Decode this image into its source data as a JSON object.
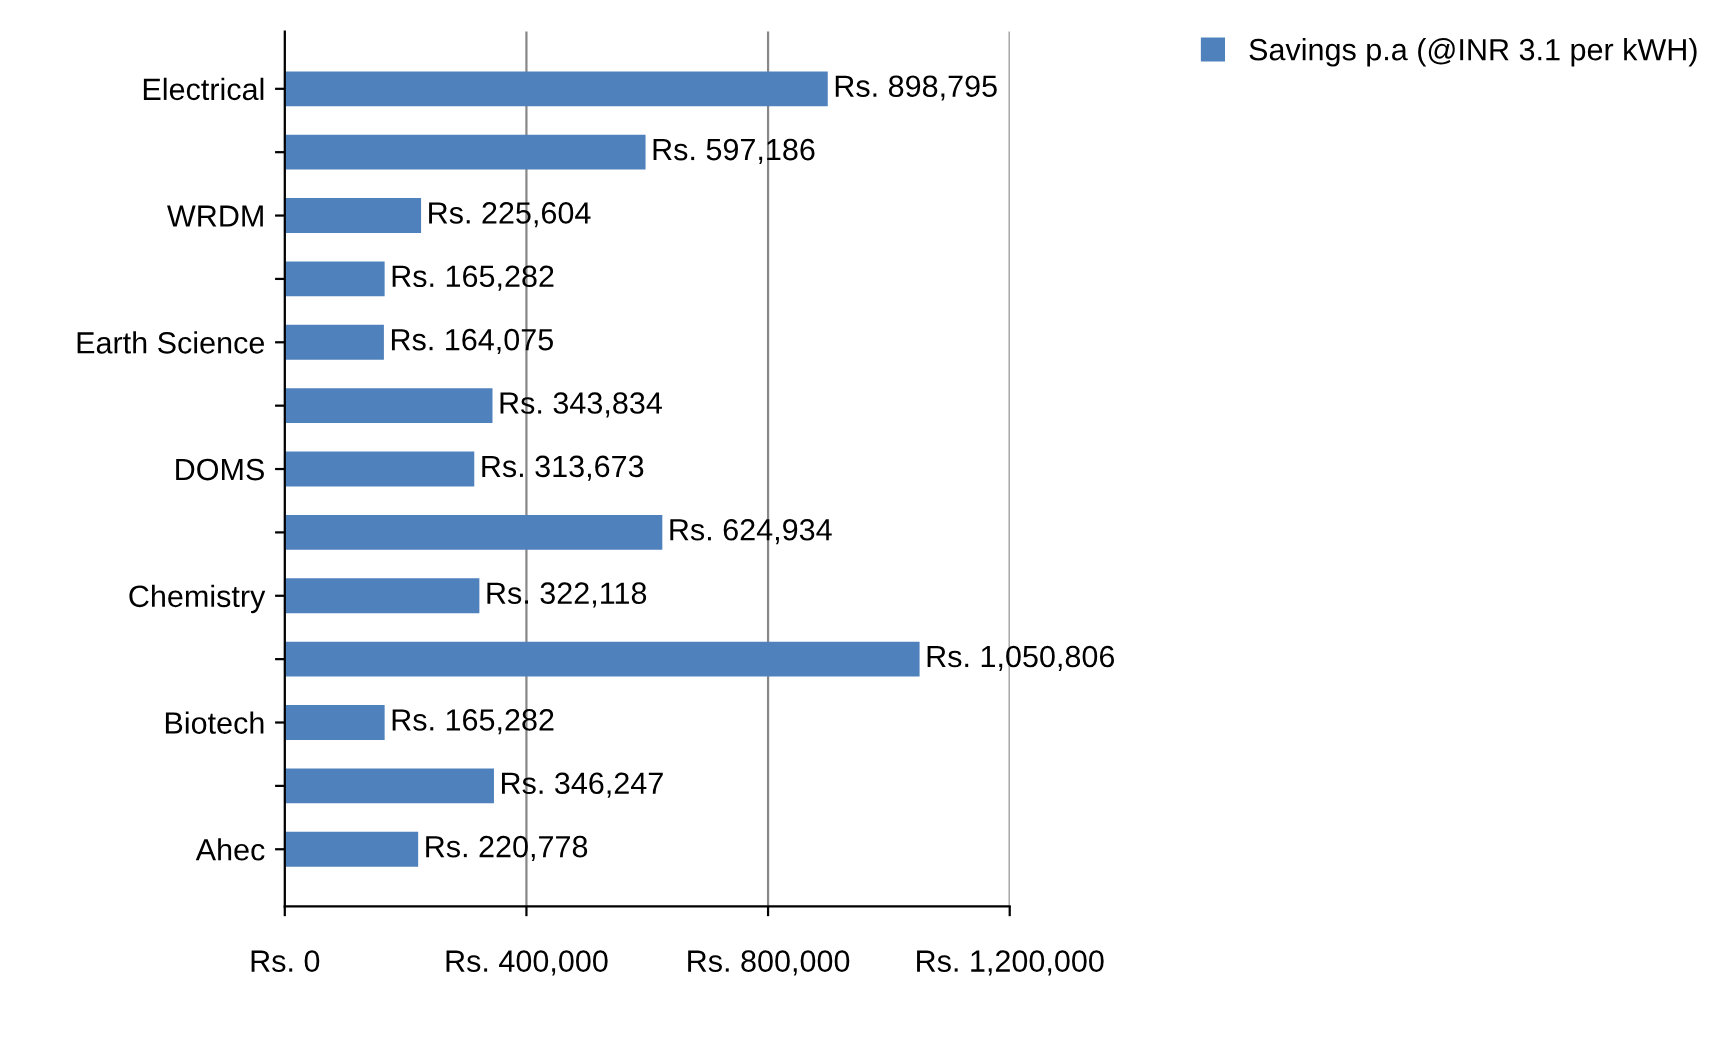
{
  "chart_data": {
    "type": "bar",
    "orientation": "horizontal",
    "categories": [
      "Electrical",
      null,
      "WRDM",
      null,
      "Earth Science",
      null,
      "DOMS",
      null,
      "Chemistry",
      null,
      "Biotech",
      null,
      "Ahec"
    ],
    "series": [
      {
        "name": "Savings p.a (@INR 3.1 per kWH)",
        "color": "#4f81bd",
        "values": [
          898795,
          597186,
          225604,
          165282,
          164075,
          343834,
          313673,
          624934,
          322118,
          1050806,
          165282,
          346247,
          220778
        ],
        "value_labels": [
          "Rs. 898,795",
          "Rs. 597,186",
          "Rs. 225,604",
          "Rs. 165,282",
          "Rs. 164,075",
          "Rs. 343,834",
          "Rs. 313,673",
          "Rs. 624,934",
          "Rs. 322,118",
          "Rs. 1,050,806",
          "Rs. 165,282",
          "Rs. 346,247",
          "Rs. 220,778"
        ]
      }
    ],
    "xlim": [
      0,
      1200000
    ],
    "xticks": [
      {
        "value": 0,
        "label": "Rs. 0"
      },
      {
        "value": 400000,
        "label": "Rs. 400,000"
      },
      {
        "value": 800000,
        "label": "Rs. 800,000"
      },
      {
        "value": 1200000,
        "label": "Rs. 1,200,000"
      }
    ],
    "grid": "x",
    "legend": "top right"
  }
}
